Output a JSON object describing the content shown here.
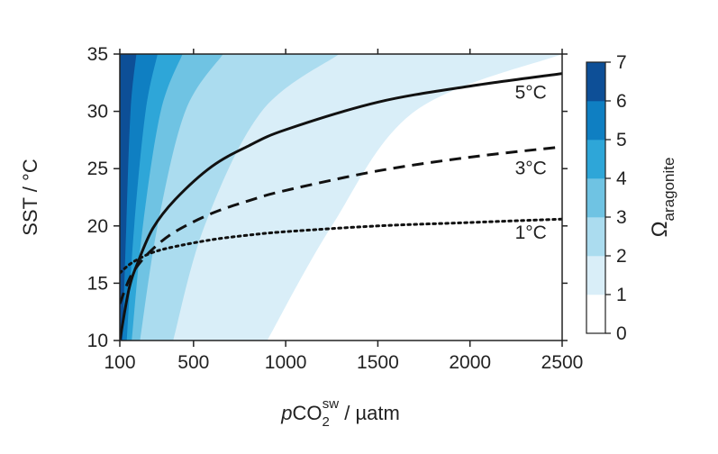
{
  "chart_data": {
    "type": "contour",
    "xlabel": {
      "prefix": "p",
      "main": "CO",
      "subscript": "2",
      "superscript": "sw",
      "unit": " / µatm"
    },
    "ylabel": "SST / °C",
    "xlim": [
      100,
      2500
    ],
    "ylim": [
      10,
      35
    ],
    "xticks": [
      100,
      500,
      1000,
      1500,
      2000,
      2500
    ],
    "yticks": [
      10,
      15,
      20,
      25,
      30,
      35
    ],
    "grid": false,
    "colorbar": {
      "label_symbol": "Ω",
      "label_subscript": "aragonite",
      "ticks": [
        0,
        1,
        2,
        3,
        4,
        5,
        6,
        7
      ],
      "levels": [
        {
          "range": [
            0,
            1
          ],
          "color": "#ffffff"
        },
        {
          "range": [
            1,
            2
          ],
          "color": "#d9eef8"
        },
        {
          "range": [
            2,
            3
          ],
          "color": "#abdcef"
        },
        {
          "range": [
            3,
            4
          ],
          "color": "#6fc3e3"
        },
        {
          "range": [
            4,
            5
          ],
          "color": "#2ea6d8"
        },
        {
          "range": [
            5,
            6
          ],
          "color": "#0f7fc2"
        },
        {
          "range": [
            6,
            7
          ],
          "color": "#0d4f97"
        }
      ]
    },
    "contour_boundaries": [
      {
        "omega": 1,
        "points": [
          [
            900,
            10
          ],
          [
            1250,
            20
          ],
          [
            1700,
            30
          ],
          [
            2500,
            35
          ]
        ]
      },
      {
        "omega": 2,
        "points": [
          [
            390,
            10
          ],
          [
            560,
            20
          ],
          [
            870,
            30
          ],
          [
            1290,
            35
          ]
        ]
      },
      {
        "omega": 3,
        "points": [
          [
            210,
            10
          ],
          [
            305,
            20
          ],
          [
            455,
            30
          ],
          [
            660,
            35
          ]
        ]
      },
      {
        "omega": 4,
        "points": [
          [
            165,
            10
          ],
          [
            225,
            20
          ],
          [
            322,
            30
          ],
          [
            440,
            35
          ]
        ]
      },
      {
        "omega": 5,
        "points": [
          [
            138,
            10
          ],
          [
            178,
            20
          ],
          [
            240,
            30
          ],
          [
            305,
            35
          ]
        ]
      },
      {
        "omega": 6,
        "points": [
          [
            115,
            10
          ],
          [
            135,
            20
          ],
          [
            158,
            30
          ],
          [
            190,
            35
          ]
        ]
      }
    ],
    "series": [
      {
        "name": "5°C",
        "style": "solid",
        "x": [
          100,
          150,
          200,
          280,
          400,
          600,
          800,
          1000,
          1500,
          2000,
          2500
        ],
        "y": [
          10,
          14.5,
          16.9,
          19.8,
          22.3,
          25.2,
          27,
          28.4,
          30.8,
          32.2,
          33.3
        ]
      },
      {
        "name": "3°C",
        "style": "dashed",
        "x": [
          100,
          150,
          200,
          280,
          400,
          600,
          800,
          1000,
          1500,
          2000,
          2500
        ],
        "y": [
          13.2,
          15.3,
          16.6,
          18,
          19.5,
          21.1,
          22.2,
          23.1,
          24.8,
          26,
          26.9
        ]
      },
      {
        "name": "1°C",
        "style": "dotted",
        "x": [
          100,
          150,
          200,
          280,
          400,
          600,
          800,
          1000,
          1500,
          2000,
          2500
        ],
        "y": [
          15.9,
          16.6,
          17.1,
          17.7,
          18.2,
          18.8,
          19.2,
          19.5,
          20,
          20.3,
          20.6
        ]
      }
    ],
    "annotations": [
      {
        "text": "5°C",
        "x": 2330,
        "y": 31.1
      },
      {
        "text": "3°C",
        "x": 2330,
        "y": 24.5
      },
      {
        "text": "1°C",
        "x": 2330,
        "y": 18.9
      }
    ]
  }
}
